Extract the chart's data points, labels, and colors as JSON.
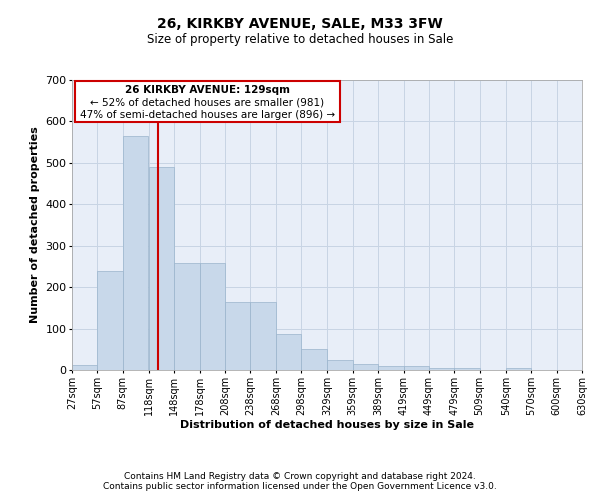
{
  "title": "26, KIRKBY AVENUE, SALE, M33 3FW",
  "subtitle": "Size of property relative to detached houses in Sale",
  "xlabel": "Distribution of detached houses by size in Sale",
  "ylabel": "Number of detached properties",
  "footer_line1": "Contains HM Land Registry data © Crown copyright and database right 2024.",
  "footer_line2": "Contains public sector information licensed under the Open Government Licence v3.0.",
  "annotation_line1": "26 KIRKBY AVENUE: 129sqm",
  "annotation_line2": "← 52% of detached houses are smaller (981)",
  "annotation_line3": "47% of semi-detached houses are larger (896) →",
  "bar_color": "#c8d8ea",
  "bar_edge_color": "#9ab4cc",
  "grid_color": "#c8d4e4",
  "redline_color": "#cc0000",
  "background_color": "#e8eef8",
  "bin_starts": [
    27,
    57,
    87,
    118,
    148,
    178,
    208,
    238,
    268,
    298,
    329,
    359,
    389,
    419,
    449,
    479,
    509,
    540,
    570,
    600
  ],
  "bin_width": 30,
  "bar_values": [
    12,
    240,
    565,
    490,
    258,
    258,
    165,
    165,
    88,
    50,
    25,
    14,
    10,
    10,
    6,
    5,
    0,
    5,
    0,
    0
  ],
  "property_size": 129,
  "ylim": [
    0,
    700
  ],
  "yticks": [
    0,
    100,
    200,
    300,
    400,
    500,
    600,
    700
  ],
  "xlim": [
    27,
    630
  ],
  "xtick_labels": [
    "27sqm",
    "57sqm",
    "87sqm",
    "118sqm",
    "148sqm",
    "178sqm",
    "208sqm",
    "238sqm",
    "268sqm",
    "298sqm",
    "329sqm",
    "359sqm",
    "389sqm",
    "419sqm",
    "449sqm",
    "479sqm",
    "509sqm",
    "540sqm",
    "570sqm",
    "600sqm",
    "630sqm"
  ]
}
